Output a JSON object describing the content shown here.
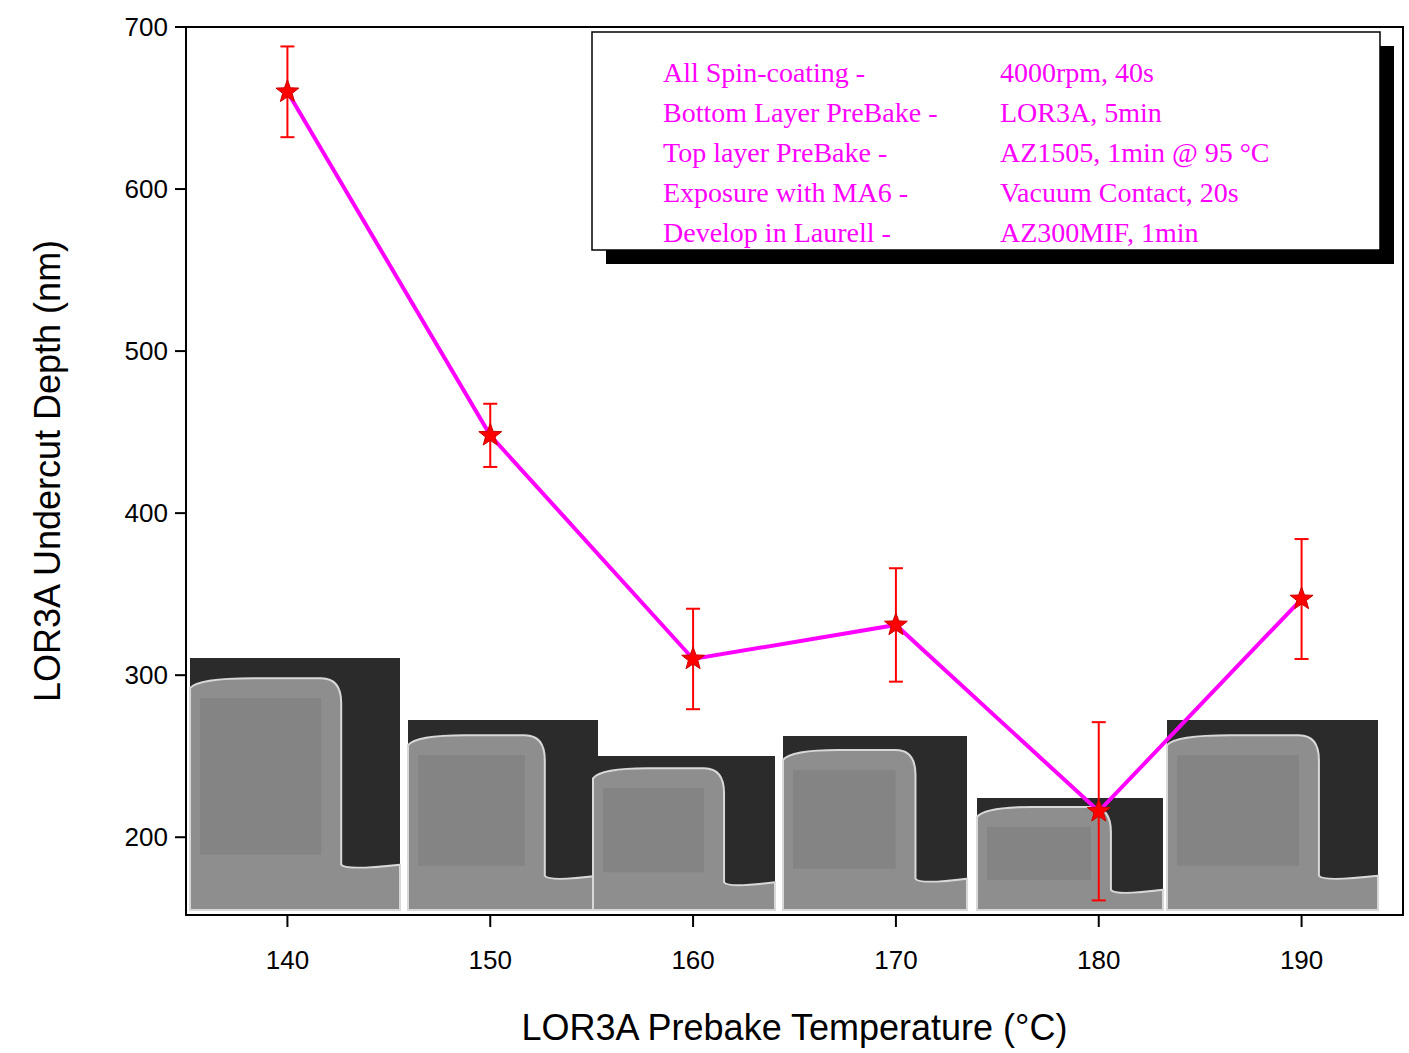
{
  "chart_data": {
    "type": "line",
    "x_label": "LOR3A Prebake Temperature (°C)",
    "y_label": "LOR3A Undercut Depth (nm)",
    "x": [
      140,
      150,
      160,
      170,
      180,
      190
    ],
    "series": [
      {
        "color": "#ff00ff",
        "marker": "star",
        "line_style": "solid",
        "values": [
          660,
          448,
          310,
          331,
          216,
          347
        ],
        "errors": [
          28,
          19.5,
          31,
          35,
          55,
          37
        ]
      }
    ],
    "xlim": [
      135,
      195
    ],
    "xticks": [
      140,
      150,
      160,
      170,
      180,
      190
    ],
    "ylim": [
      152,
      700
    ],
    "yticks": [
      200,
      300,
      400,
      500,
      600,
      700
    ],
    "grid": false,
    "annotations": [
      [
        "All Spin-coating -",
        "4000rpm, 40s"
      ],
      [
        "Bottom Layer PreBake -",
        "LOR3A, 5min"
      ],
      [
        "Top layer PreBake -",
        "AZ1505, 1min @ 95 °C"
      ],
      [
        "Exposure with MA6 -",
        "Vacuum Contact, 20s"
      ],
      [
        "Develop in Laurell -",
        "AZ300MIF, 1min"
      ]
    ]
  }
}
